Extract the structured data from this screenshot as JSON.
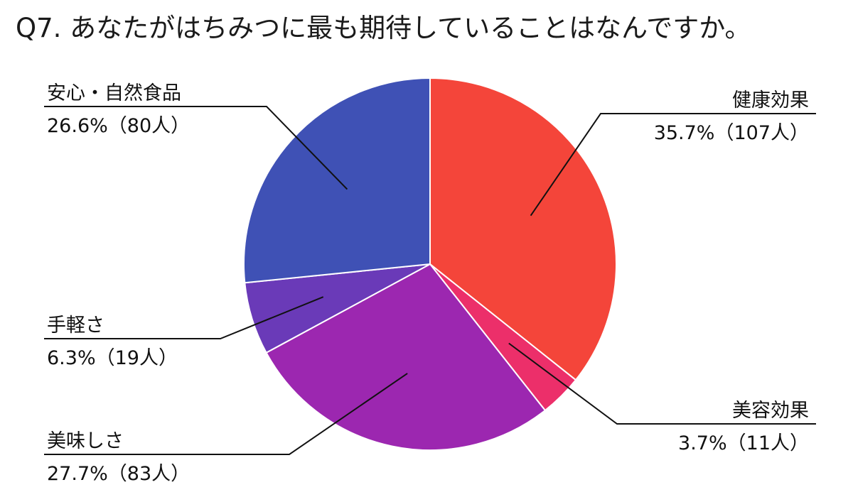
{
  "chart_data": {
    "type": "pie",
    "title": "Q7. あなたがはちみつに最も期待していることはなんですか。",
    "slices": [
      {
        "name": "健康効果",
        "value": 35.7,
        "count_label": "35.7%（107人）",
        "color": "#F4453A"
      },
      {
        "name": "美容効果",
        "value": 3.7,
        "count_label": "3.7%（11人）",
        "color": "#EC2F6A"
      },
      {
        "name": "美味しさ",
        "value": 27.7,
        "count_label": "27.7%（83人）",
        "color": "#9C27B0"
      },
      {
        "name": "手軽さ",
        "value": 6.3,
        "count_label": "6.3%（19人）",
        "color": "#6A3AB8"
      },
      {
        "name": "安心・自然食品",
        "value": 26.6,
        "count_label": "26.6%（80人）",
        "color": "#3F51B5"
      }
    ]
  }
}
